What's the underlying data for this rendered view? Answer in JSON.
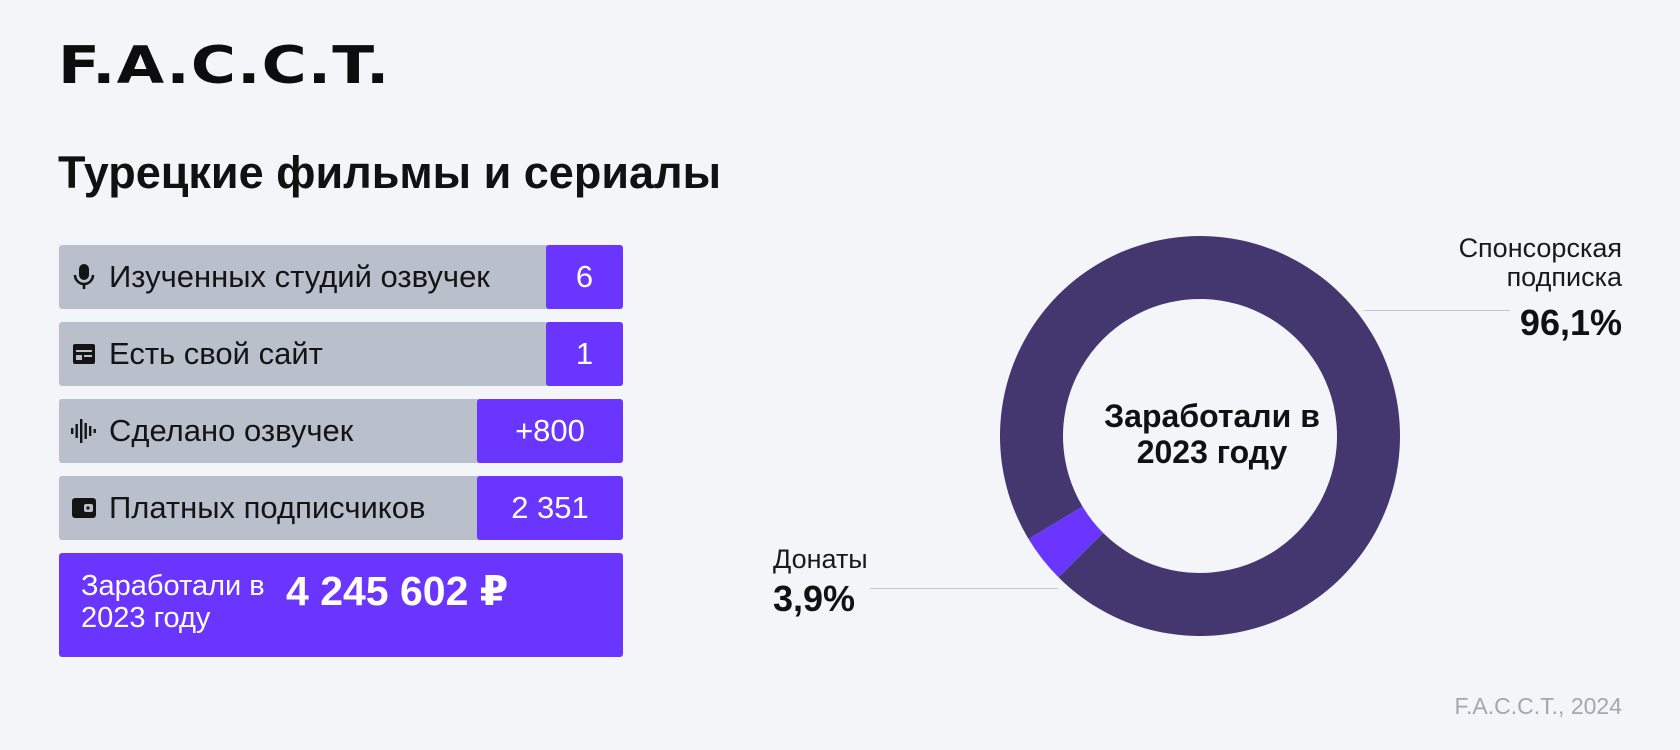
{
  "brand": {
    "logo": "F.A.C.C.T."
  },
  "page": {
    "title": "Турецкие фильмы и сериалы"
  },
  "stats": [
    {
      "icon": "microphone-icon",
      "label": "Изученных студий озвучек",
      "value": "6"
    },
    {
      "icon": "website-icon",
      "label": "Есть свой сайт",
      "value": "1"
    },
    {
      "icon": "soundwave-icon",
      "label": "Сделано озвучек",
      "value": "+800"
    },
    {
      "icon": "wallet-icon",
      "label": "Платных подписчиков",
      "value": "2 351"
    }
  ],
  "earnings": {
    "label": "Заработали в 2023 году",
    "value": "4 245 602 ₽"
  },
  "colors": {
    "accent": "#6a36ff",
    "donut_main": "#44376f",
    "stat_bg": "#b9bfcb",
    "background": "#f4f5f9"
  },
  "chart_data": {
    "type": "pie",
    "title": "Заработали в 2023 году",
    "slices": [
      {
        "label": "Спонсорская подписка",
        "value": 96.1,
        "display": "96,1%",
        "color": "#44376f"
      },
      {
        "label": "Донаты",
        "value": 3.9,
        "display": "3,9%",
        "color": "#6a36ff"
      }
    ]
  },
  "footer": {
    "source": "F.A.C.C.T., 2024"
  }
}
